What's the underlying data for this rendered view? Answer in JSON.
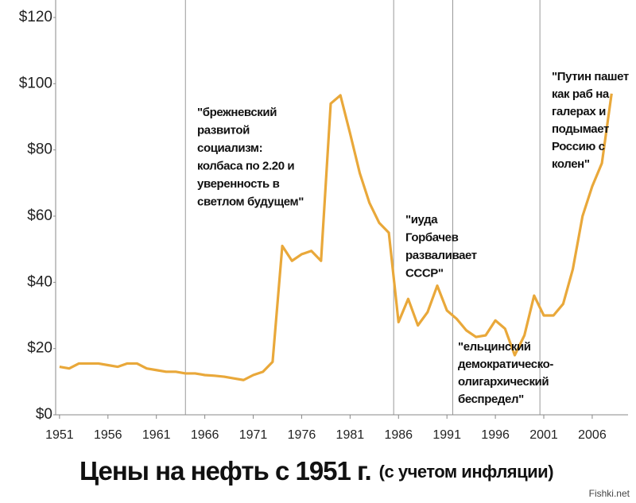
{
  "chart_data": {
    "type": "line",
    "title": "Цены на нефть с 1951 г.",
    "subtitle": "(с учетом инфляции)",
    "watermark": "Fishki.net",
    "x": [
      1951,
      1952,
      1953,
      1954,
      1955,
      1956,
      1957,
      1958,
      1959,
      1960,
      1961,
      1962,
      1963,
      1964,
      1965,
      1966,
      1967,
      1968,
      1969,
      1970,
      1971,
      1972,
      1973,
      1974,
      1975,
      1976,
      1977,
      1978,
      1979,
      1980,
      1981,
      1982,
      1983,
      1984,
      1985,
      1986,
      1987,
      1988,
      1989,
      1990,
      1991,
      1992,
      1993,
      1994,
      1995,
      1996,
      1997,
      1998,
      1999,
      2000,
      2001,
      2002,
      2003,
      2004,
      2005,
      2006,
      2007,
      2008
    ],
    "series": [
      {
        "color": "#e9a83a",
        "values": [
          14.5,
          14,
          15.5,
          15.5,
          15.5,
          15,
          14.5,
          15.5,
          15.5,
          14,
          13.5,
          13,
          13,
          12.5,
          12.5,
          12,
          11.8,
          11.5,
          11,
          10.5,
          12,
          13,
          16,
          51,
          46.5,
          48.5,
          49.5,
          46.5,
          94,
          96.5,
          85,
          73,
          64,
          58,
          55,
          28,
          35,
          27,
          31,
          39,
          31.5,
          29,
          25.5,
          23.5,
          24,
          28.5,
          26,
          18,
          24,
          36,
          30,
          30,
          33.5,
          44,
          60,
          69,
          76,
          97
        ]
      }
    ],
    "xlim": [
      1950.6,
      2009.7
    ],
    "xticks": [
      1951,
      1956,
      1961,
      1966,
      1971,
      1976,
      1981,
      1986,
      1991,
      1996,
      2001,
      2006
    ],
    "ylim": [
      0,
      120
    ],
    "yticks": [
      {
        "value": 0,
        "label": "$0"
      },
      {
        "value": 20,
        "label": "$20"
      },
      {
        "value": 40,
        "label": "$40"
      },
      {
        "value": 60,
        "label": "$60"
      },
      {
        "value": 80,
        "label": "$80"
      },
      {
        "value": 100,
        "label": "$100"
      },
      {
        "value": 120,
        "label": "$120"
      }
    ],
    "vlines": [
      1964,
      1985.5,
      1991.6,
      2000.6
    ],
    "annotations": [
      {
        "lines": [
          "\"брежневский",
          "развитой",
          "социализм:",
          "колбаса по 2.20 и",
          "уверенность в",
          "светлом будущем\""
        ]
      },
      {
        "lines": [
          "\"иуда",
          "Горбачев",
          "разваливает",
          "СССР\""
        ]
      },
      {
        "lines": [
          "\"ельцинский",
          "демократическо-",
          "олигархический",
          "беспредел\""
        ]
      },
      {
        "lines": [
          "\"Путин пашет",
          "как раб на",
          "галерах и",
          "подымает",
          "Россию с",
          "колен\""
        ]
      }
    ]
  }
}
